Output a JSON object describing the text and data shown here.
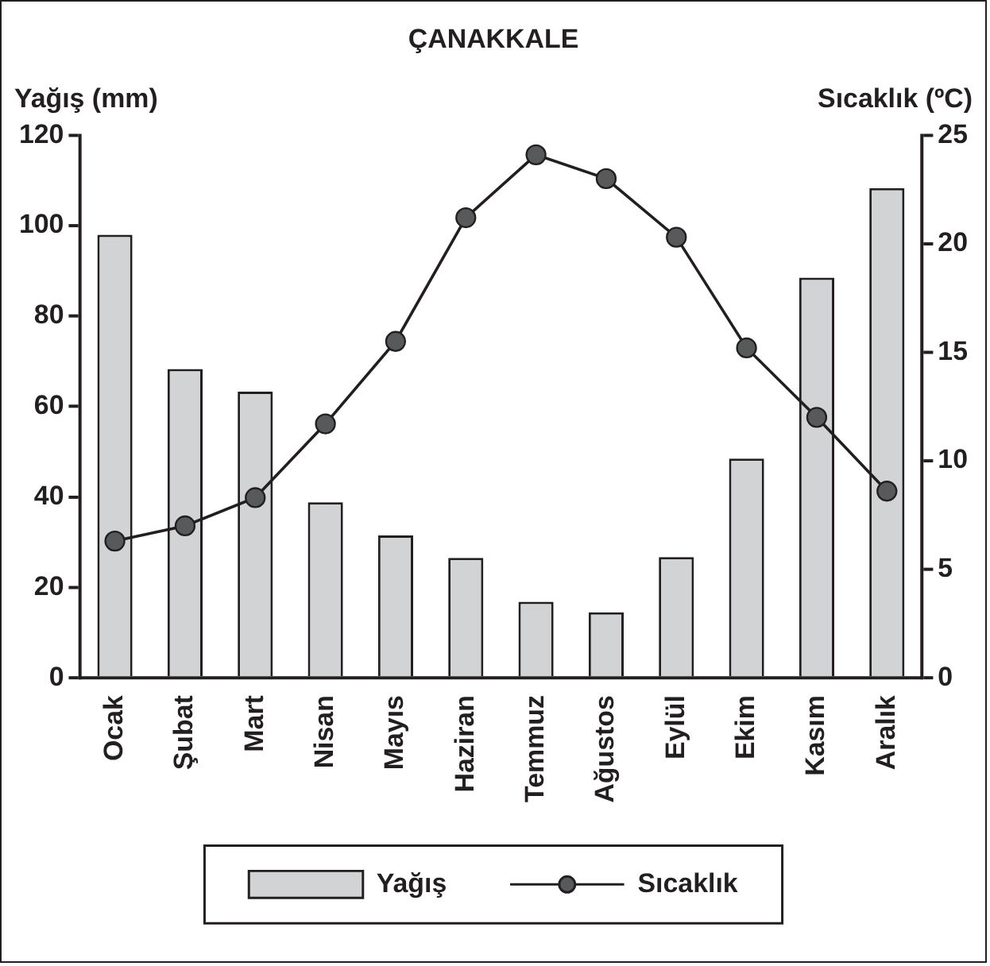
{
  "chart_data": {
    "type": "bar",
    "title": "ÇANAKKALE",
    "ylabel": "Yağış (mm)",
    "y2label": "Sıcaklık (ºC)",
    "categories": [
      "Ocak",
      "Şubat",
      "Mart",
      "Nisan",
      "Mayıs",
      "Haziran",
      "Temmuz",
      "Ağustos",
      "Eylül",
      "Ekim",
      "Kasım",
      "Aralık"
    ],
    "series": [
      {
        "name": "Yağış",
        "color": "#d1d3d4",
        "values": [
          98,
          68.3,
          63.3,
          38.8,
          31.5,
          26.5,
          16.8,
          14.5,
          26.7,
          48.5,
          88.5,
          108.3
        ]
      },
      {
        "name": "Sıcaklık",
        "type": "line",
        "axis": "y2",
        "color": "#231f20",
        "values": [
          6.3,
          7.0,
          8.3,
          11.7,
          15.5,
          21.2,
          24.1,
          23.0,
          20.3,
          15.2,
          12.0,
          8.6
        ]
      }
    ],
    "ylim": [
      0,
      120
    ],
    "yticks": [
      0,
      20,
      40,
      60,
      80,
      100,
      120
    ],
    "y2lim": [
      0,
      25
    ],
    "y2ticks": [
      0,
      5,
      10,
      15,
      20,
      25
    ],
    "legend": "bottom",
    "marker": "circle"
  }
}
